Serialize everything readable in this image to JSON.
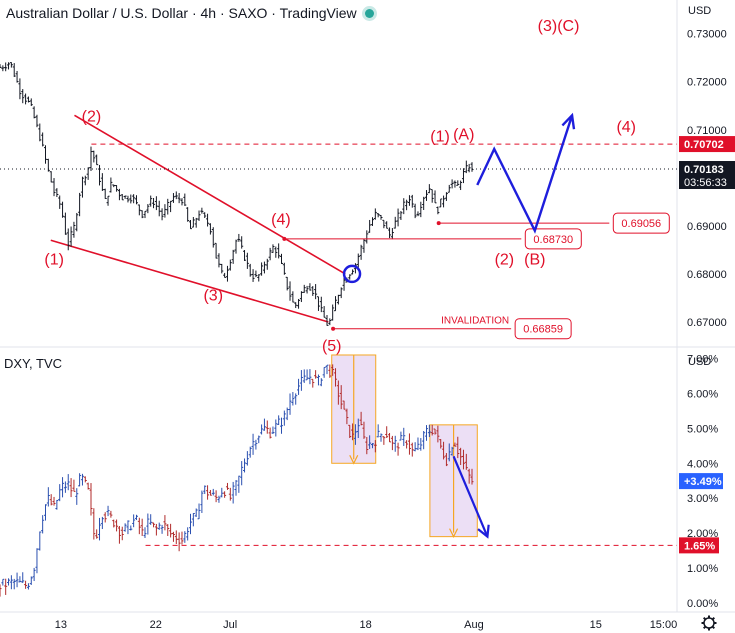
{
  "header": {
    "title": "Australian Dollar / U.S. Dollar · 4h · SAXO · TradingView",
    "sub_title": "DXY, TVC",
    "currency_top": "USD",
    "currency_bottom": "USD"
  },
  "colors": {
    "red": "#e0102a",
    "blue": "#1e1edc",
    "bar_up": "#2a4fb0",
    "bar_down": "#b02a2a",
    "price_tag": "#e0102a",
    "last_tag": "#131722",
    "dxy_tag": "#2962ff",
    "box": "#e6d4f2",
    "orange": "#f5a623"
  },
  "chart_data": [
    {
      "type": "candlestick-annotated",
      "title": "Australian Dollar / U.S. Dollar · 4h · SAXO · TradingView",
      "ylim": [
        0.665,
        0.737
      ],
      "xlim": [
        0,
        100
      ],
      "x_ticks": [
        {
          "x": 9,
          "label": "13"
        },
        {
          "x": 23,
          "label": "22"
        },
        {
          "x": 34,
          "label": "Jul"
        },
        {
          "x": 54,
          "label": "18"
        },
        {
          "x": 70,
          "label": "Aug"
        },
        {
          "x": 88,
          "label": "15"
        },
        {
          "x": 98,
          "label": "15:00"
        }
      ],
      "y_ticks": [
        {
          "v": 0.73,
          "label": "0.73000"
        },
        {
          "v": 0.72,
          "label": "0.72000"
        },
        {
          "v": 0.71,
          "label": "0.71000"
        },
        {
          "v": 0.69,
          "label": "0.69000"
        },
        {
          "v": 0.68,
          "label": "0.68000"
        },
        {
          "v": 0.67,
          "label": "0.67000"
        }
      ],
      "price_path": [
        [
          0,
          0.723
        ],
        [
          1.5,
          0.724
        ],
        [
          3,
          0.718
        ],
        [
          4.5,
          0.715
        ],
        [
          6,
          0.708
        ],
        [
          7,
          0.702
        ],
        [
          8,
          0.697
        ],
        [
          9,
          0.694
        ],
        [
          10,
          0.686
        ],
        [
          11,
          0.69
        ],
        [
          12,
          0.699
        ],
        [
          13,
          0.702
        ],
        [
          13.5,
          0.706
        ],
        [
          14.5,
          0.701
        ],
        [
          15.5,
          0.695
        ],
        [
          16.5,
          0.699
        ],
        [
          18,
          0.696
        ],
        [
          19.5,
          0.696
        ],
        [
          21,
          0.6925
        ],
        [
          22.5,
          0.6955
        ],
        [
          24,
          0.692
        ],
        [
          25.5,
          0.696
        ],
        [
          27,
          0.6955
        ],
        [
          28,
          0.689
        ],
        [
          29.5,
          0.693
        ],
        [
          31,
          0.69
        ],
        [
          32,
          0.683
        ],
        [
          33,
          0.679
        ],
        [
          34,
          0.683
        ],
        [
          35,
          0.6875
        ],
        [
          36,
          0.684
        ],
        [
          37,
          0.68
        ],
        [
          38,
          0.679
        ],
        [
          39,
          0.682
        ],
        [
          40.5,
          0.686
        ],
        [
          41.5,
          0.682
        ],
        [
          42.5,
          0.677
        ],
        [
          43.5,
          0.673
        ],
        [
          44.5,
          0.676
        ],
        [
          45.5,
          0.678
        ],
        [
          46.5,
          0.676
        ],
        [
          47.5,
          0.672
        ],
        [
          48.5,
          0.669
        ],
        [
          49.5,
          0.674
        ],
        [
          50.5,
          0.678
        ],
        [
          51.5,
          0.68
        ],
        [
          52.5,
          0.682
        ],
        [
          53.5,
          0.686
        ],
        [
          54.5,
          0.69
        ],
        [
          55.5,
          0.6925
        ],
        [
          56.5,
          0.691
        ],
        [
          57.5,
          0.688
        ],
        [
          58.5,
          0.691
        ],
        [
          59.5,
          0.694
        ],
        [
          60.5,
          0.696
        ],
        [
          61.5,
          0.692
        ],
        [
          62.5,
          0.696
        ],
        [
          63.5,
          0.698
        ],
        [
          64.5,
          0.693
        ],
        [
          65.5,
          0.696
        ],
        [
          66.5,
          0.699
        ],
        [
          67.5,
          0.698
        ],
        [
          68.5,
          0.701
        ],
        [
          69.5,
          0.703
        ],
        [
          70,
          0.699
        ]
      ],
      "levels": [
        {
          "label": "0.70702",
          "value": 0.70702,
          "x_from": 13.5,
          "style": "dashed",
          "tag_kind": "filled"
        },
        {
          "label": "0.69056",
          "value": 0.69056,
          "x_from": 64.8,
          "x_to": 90,
          "style": "solid",
          "tag_kind": "outline"
        },
        {
          "label": "0.68730",
          "value": 0.6873,
          "x_from": 42,
          "x_to": 77,
          "style": "solid",
          "tag_kind": "outline"
        },
        {
          "label": "0.66859",
          "value": 0.66859,
          "x_from": 49.2,
          "x_to": 75.5,
          "style": "solid",
          "tag_kind": "outline",
          "note": "INVALIDATION"
        },
        {
          "label": "0.70183",
          "value": 0.70183,
          "style": "dotted",
          "tag_kind": "last",
          "time": "03:56:33"
        }
      ],
      "wave_labels": [
        {
          "text": "(1)",
          "x": 8,
          "v": 0.682
        },
        {
          "text": "(2)",
          "x": 13.5,
          "v": 0.7117
        },
        {
          "text": "(3)",
          "x": 31.5,
          "v": 0.6745
        },
        {
          "text": "(4)",
          "x": 41.5,
          "v": 0.6903
        },
        {
          "text": "(5)",
          "x": 49,
          "v": 0.664
        },
        {
          "text": "(1)",
          "x": 65,
          "v": 0.7076
        },
        {
          "text": "(A)",
          "x": 68.5,
          "v": 0.708
        },
        {
          "text": "(2)",
          "x": 74.5,
          "v": 0.682
        },
        {
          "text": "(B)",
          "x": 79,
          "v": 0.682
        },
        {
          "text": "(4)",
          "x": 92.5,
          "v": 0.7095
        },
        {
          "text": "(3)(C)",
          "x": 82.5,
          "v": 0.7305
        }
      ],
      "wedge_lines": [
        {
          "from": [
            11,
            0.713
          ],
          "to": [
            51,
            0.68
          ]
        },
        {
          "from": [
            7.5,
            0.687
          ],
          "to": [
            48.5,
            0.67
          ]
        }
      ],
      "projection": [
        [
          70.5,
          0.6985
        ],
        [
          73,
          0.706
        ],
        [
          79,
          0.689
        ],
        [
          84.5,
          0.713
        ]
      ],
      "circle": {
        "x": 52,
        "v": 0.68
      }
    },
    {
      "type": "bar-annotated",
      "title": "DXY, TVC",
      "ylim": [
        -0.2,
        7.3
      ],
      "y_ticks": [
        {
          "v": 7,
          "label": "7.00%"
        },
        {
          "v": 6,
          "label": "6.00%"
        },
        {
          "v": 5,
          "label": "5.00%"
        },
        {
          "v": 4,
          "label": "4.00%"
        },
        {
          "v": 3,
          "label": "3.00%"
        },
        {
          "v": 2,
          "label": "2.00%"
        },
        {
          "v": 1,
          "label": "1.00%"
        },
        {
          "v": 0,
          "label": "0.00%"
        }
      ],
      "path": [
        [
          0,
          0.5
        ],
        [
          2,
          0.6
        ],
        [
          4,
          0.5
        ],
        [
          5,
          1.0
        ],
        [
          6,
          2.3
        ],
        [
          7,
          3.0
        ],
        [
          8,
          2.7
        ],
        [
          9,
          3.3
        ],
        [
          10,
          3.4
        ],
        [
          11,
          3.1
        ],
        [
          12,
          3.6
        ],
        [
          13,
          3.2
        ],
        [
          14,
          1.8
        ],
        [
          15,
          2.6
        ],
        [
          16,
          2.5
        ],
        [
          17,
          2.3
        ],
        [
          18,
          2.0
        ],
        [
          19,
          2.2
        ],
        [
          20,
          2.4
        ],
        [
          21,
          2.0
        ],
        [
          22,
          2.3
        ],
        [
          23,
          2.1
        ],
        [
          24,
          2.3
        ],
        [
          25,
          2.0
        ],
        [
          26,
          1.9
        ],
        [
          27,
          1.8
        ],
        [
          28,
          2.3
        ],
        [
          29,
          2.5
        ],
        [
          30,
          3.3
        ],
        [
          31,
          3.1
        ],
        [
          32,
          3.0
        ],
        [
          33,
          3.3
        ],
        [
          34,
          3.0
        ],
        [
          35,
          3.4
        ],
        [
          36,
          4.0
        ],
        [
          37,
          4.5
        ],
        [
          38,
          4.8
        ],
        [
          39,
          5.0
        ],
        [
          40,
          4.9
        ],
        [
          41,
          5.1
        ],
        [
          42,
          5.3
        ],
        [
          43,
          5.9
        ],
        [
          44,
          6.2
        ],
        [
          45,
          6.4
        ],
        [
          46,
          6.5
        ],
        [
          47,
          6.3
        ],
        [
          48,
          6.8
        ],
        [
          49,
          6.6
        ],
        [
          50,
          6.0
        ],
        [
          51,
          5.3
        ],
        [
          52,
          4.7
        ],
        [
          53,
          5.2
        ],
        [
          54,
          4.5
        ],
        [
          55,
          4.6
        ],
        [
          56,
          4.8
        ],
        [
          57,
          4.9
        ],
        [
          58,
          4.5
        ],
        [
          59,
          4.6
        ],
        [
          60,
          4.7
        ],
        [
          61,
          4.3
        ],
        [
          62,
          4.5
        ],
        [
          63,
          4.9
        ],
        [
          64,
          5.0
        ],
        [
          65,
          4.5
        ],
        [
          66,
          4.1
        ],
        [
          67,
          4.7
        ],
        [
          68,
          4.2
        ],
        [
          69,
          3.7
        ],
        [
          70,
          3.4
        ]
      ],
      "levels": [
        {
          "label": "1.65%",
          "value": 1.65,
          "x_from": 21.5,
          "style": "dashed",
          "tag_kind": "filled"
        },
        {
          "label": "+3.49%",
          "value": 3.49,
          "style": "none",
          "tag_kind": "blue"
        }
      ],
      "boxes": [
        {
          "x1": 49,
          "x2": 55.5,
          "y1": 7.1,
          "y2": 4.0
        },
        {
          "x1": 63.5,
          "x2": 70.5,
          "y1": 5.1,
          "y2": 1.9
        }
      ],
      "arrow": [
        [
          67,
          4.2
        ],
        [
          72,
          1.9
        ]
      ]
    }
  ]
}
